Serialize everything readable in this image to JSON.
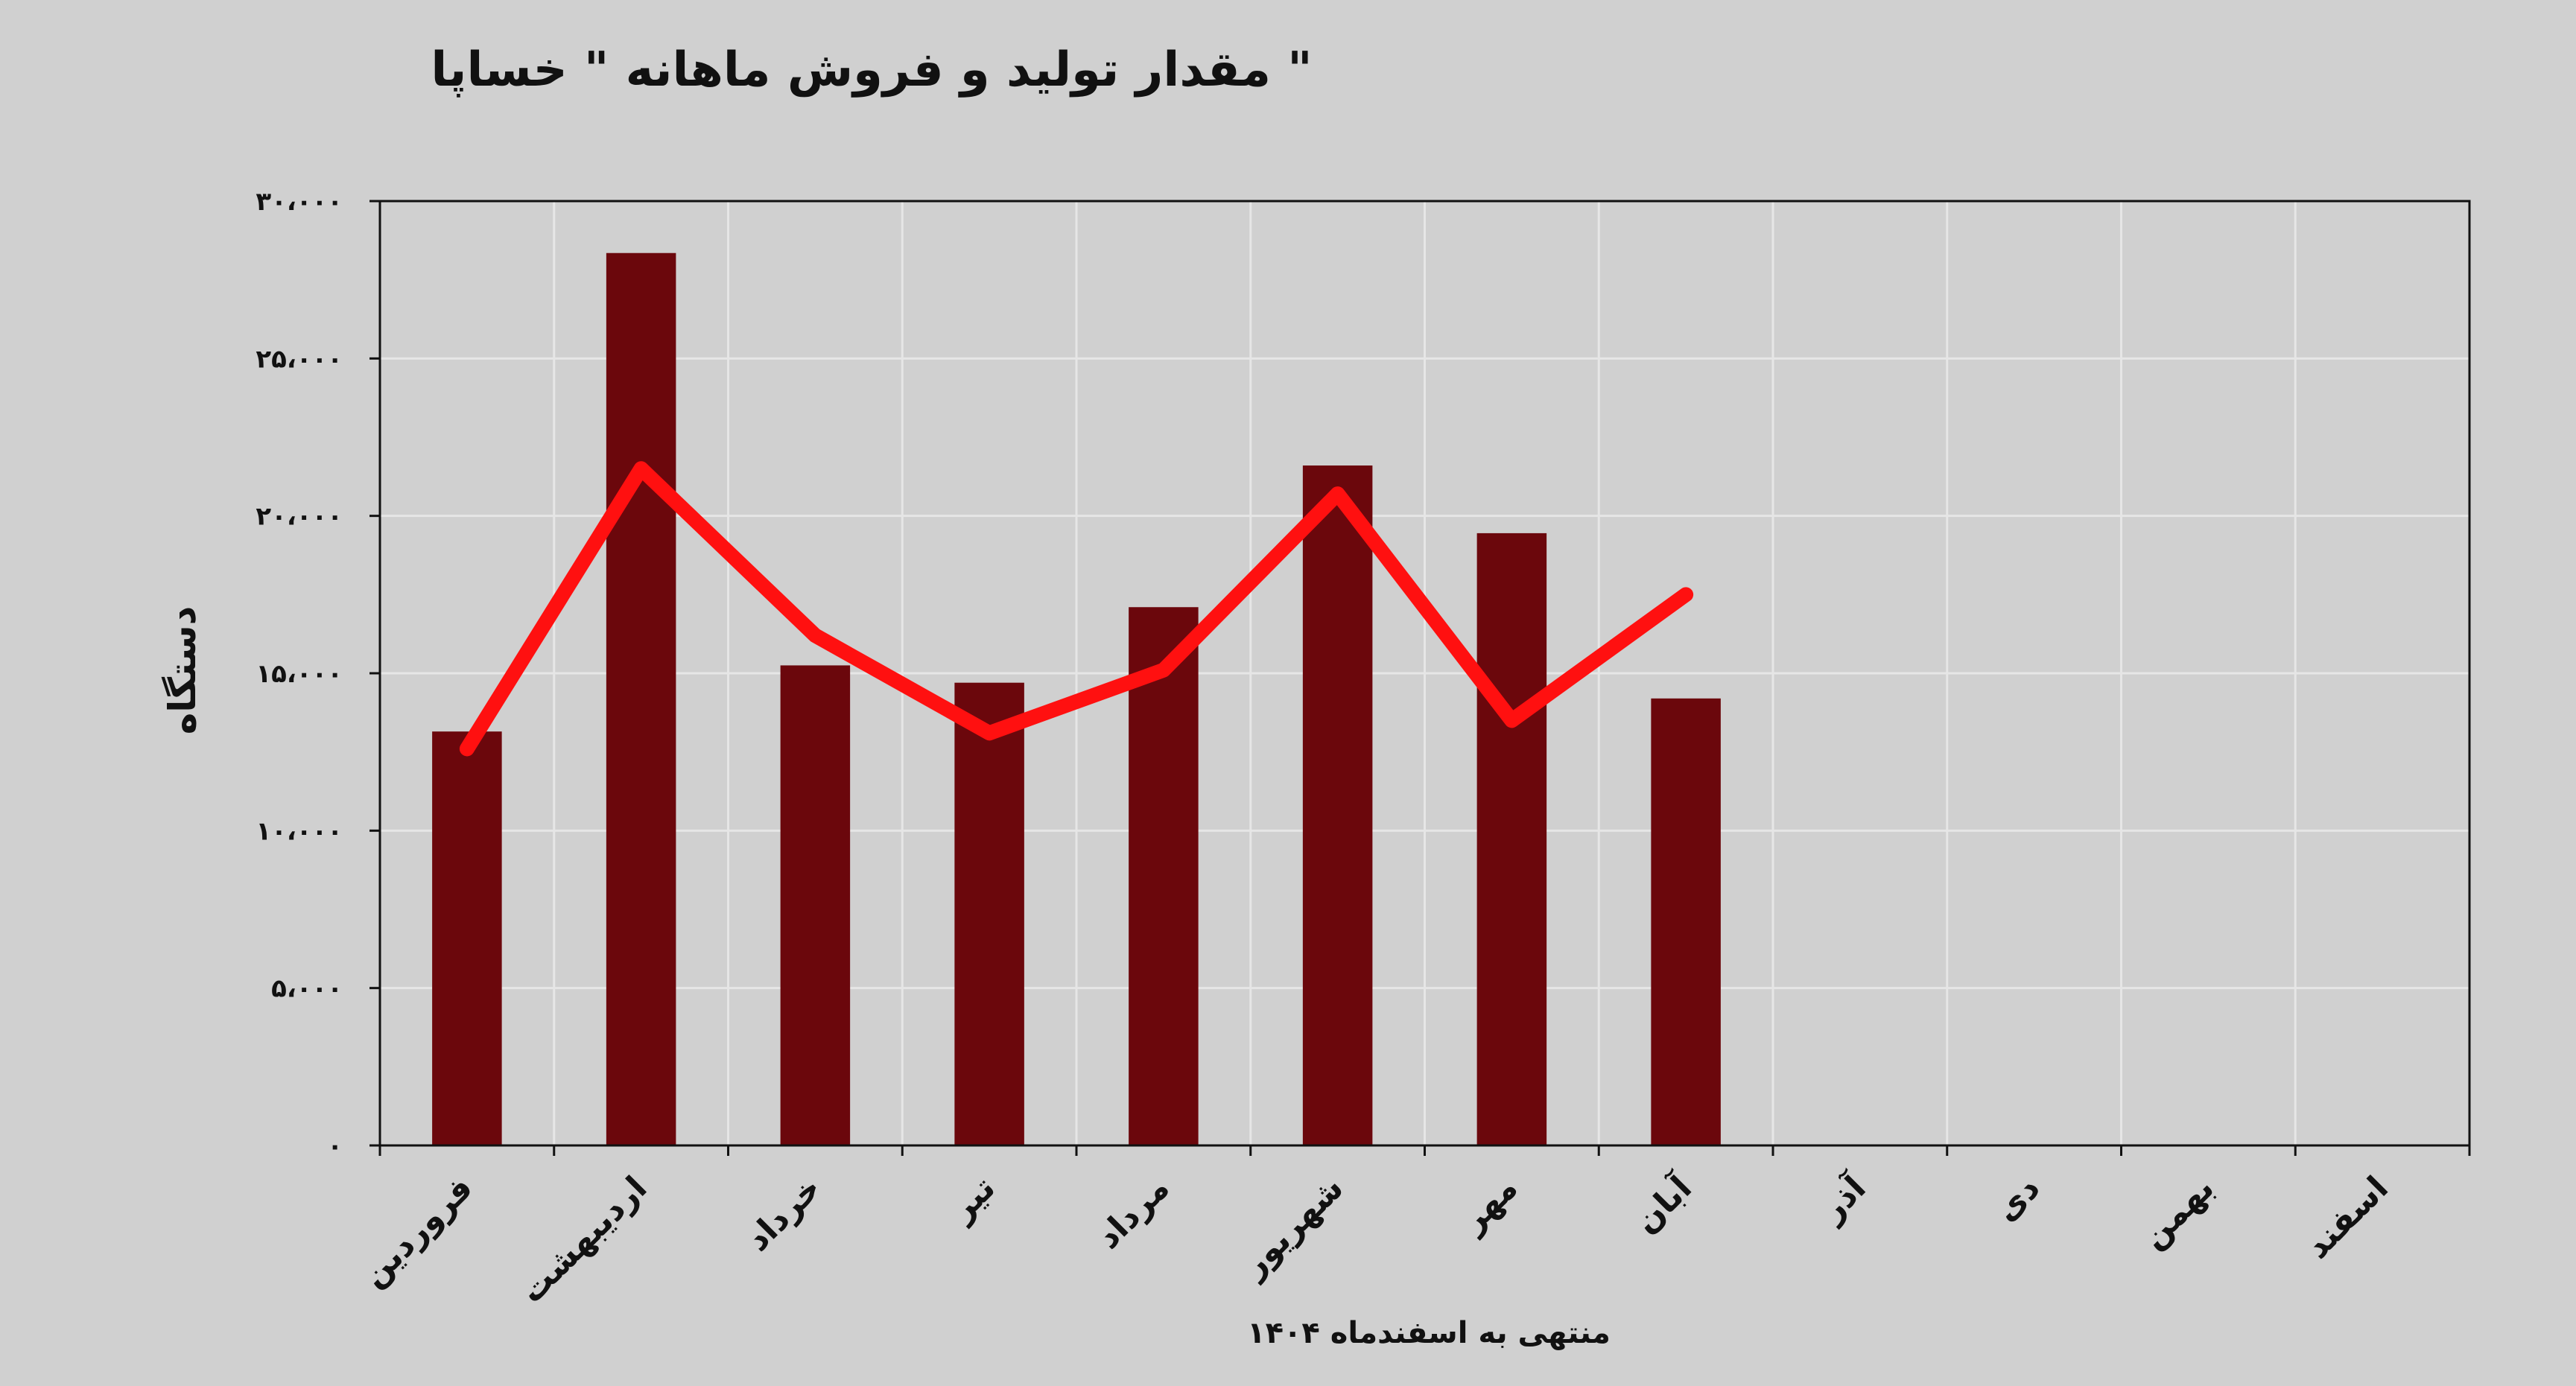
{
  "chart_data": {
    "type": "bar",
    "title": "مقدار تولید و فروش ماهانه \" خساپا \"",
    "xlabel": "منتهی به اسفندماه ۱۴۰۴",
    "ylabel": "دستگاه",
    "ylim": [
      0,
      30000
    ],
    "yticks": [
      0,
      5000,
      10000,
      15000,
      20000,
      25000,
      30000
    ],
    "ytick_labels": [
      "۰",
      "۵،۰۰۰",
      "۱۰،۰۰۰",
      "۱۵،۰۰۰",
      "۲۰،۰۰۰",
      "۲۵،۰۰۰",
      "۳۰،۰۰۰"
    ],
    "categories": [
      "فروردین",
      "اردیبهشت",
      "خرداد",
      "تیر",
      "مرداد",
      "شهریور",
      "مهر",
      "آبان",
      "آذر",
      "دی",
      "بهمن",
      "اسفند"
    ],
    "grid": true,
    "series": [
      {
        "type": "bar",
        "color": "#6b070c",
        "values": [
          13150,
          28350,
          15250,
          14700,
          17100,
          21600,
          19450,
          14200,
          null,
          null,
          null,
          null
        ]
      },
      {
        "type": "line",
        "color": "#ff1010",
        "values": [
          12600,
          21500,
          16200,
          13100,
          15100,
          20700,
          13500,
          17500,
          null,
          null,
          null,
          null
        ]
      }
    ]
  }
}
